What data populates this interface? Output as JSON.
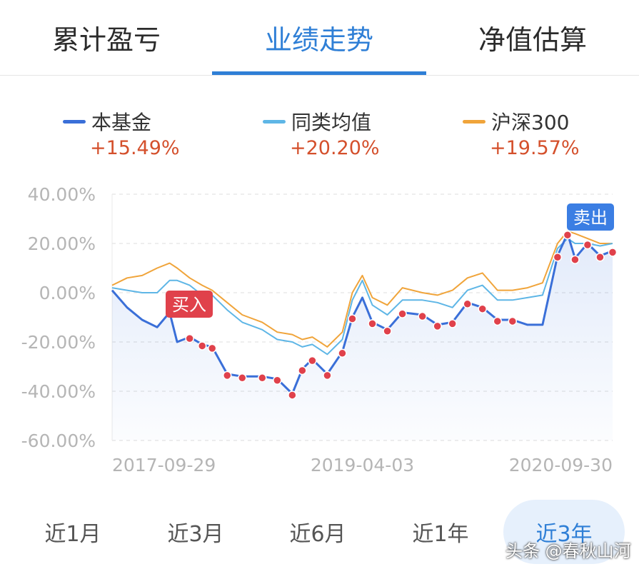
{
  "tabs": [
    {
      "label": "累计盈亏",
      "active": false
    },
    {
      "label": "业绩走势",
      "active": true
    },
    {
      "label": "净值估算",
      "active": false
    }
  ],
  "legend": [
    {
      "name": "本基金",
      "value": "+15.49%",
      "color": "#3a6fd8"
    },
    {
      "name": "同类均值",
      "value": "+20.20%",
      "color": "#5eb6e6"
    },
    {
      "name": "沪深300",
      "value": "+19.57%",
      "color": "#f0a43a"
    }
  ],
  "chart_data": {
    "type": "line",
    "y_ticks": [
      "40.00%",
      "20.00%",
      "0.00%",
      "-20.00%",
      "-40.00%",
      "-60.00%"
    ],
    "ylim": [
      -60,
      40
    ],
    "x_tick_labels": [
      "2017-09-29",
      "2019-04-03",
      "2020-09-30"
    ],
    "x": [
      0,
      0.03,
      0.06,
      0.09,
      0.115,
      0.13,
      0.155,
      0.18,
      0.2,
      0.23,
      0.26,
      0.3,
      0.33,
      0.36,
      0.38,
      0.4,
      0.43,
      0.46,
      0.48,
      0.5,
      0.52,
      0.55,
      0.58,
      0.62,
      0.65,
      0.68,
      0.71,
      0.74,
      0.77,
      0.8,
      0.83,
      0.86,
      0.89,
      0.91,
      0.925,
      0.95,
      0.975,
      1.0
    ],
    "series": [
      {
        "name": "本基金",
        "values": [
          1,
          -6,
          -11,
          -14,
          -8,
          -20,
          -18,
          -21,
          -22,
          -33,
          -34,
          -34,
          -35,
          -41,
          -31,
          -27,
          -33,
          -24,
          -10,
          -2,
          -12,
          -15,
          -8,
          -9,
          -13,
          -12,
          -4,
          -6,
          -11,
          -11,
          -13,
          -13,
          15,
          24,
          14,
          20,
          15,
          17
        ]
      },
      {
        "name": "同类均值",
        "values": [
          2,
          1,
          0,
          0,
          5,
          5,
          3,
          -1,
          -1,
          -7,
          -12,
          -15,
          -19,
          -20,
          -22,
          -21,
          -25,
          -19,
          -3,
          5,
          -5,
          -9,
          -3,
          -3,
          -4,
          -6,
          1,
          3,
          -3,
          -3,
          -2,
          -1,
          18,
          22,
          20,
          20,
          19,
          20
        ]
      },
      {
        "name": "沪深300",
        "values": [
          3,
          6,
          7,
          10,
          12,
          10,
          6,
          3,
          1,
          -4,
          -9,
          -12,
          -16,
          -17,
          -19,
          -18,
          -22,
          -16,
          0,
          7,
          -2,
          -5,
          2,
          0,
          -1,
          1,
          6,
          8,
          1,
          1,
          2,
          4,
          20,
          25,
          24,
          22,
          20,
          20
        ]
      }
    ],
    "buy_label": "买入",
    "sell_label": "卖出",
    "buy_at": 0.115,
    "sell_at": 0.91
  },
  "ranges": [
    {
      "label": "近1月",
      "active": false
    },
    {
      "label": "近3月",
      "active": false
    },
    {
      "label": "近6月",
      "active": false
    },
    {
      "label": "近1年",
      "active": false
    },
    {
      "label": "近3年",
      "active": true
    }
  ],
  "watermark": "头条 @春秋山河"
}
